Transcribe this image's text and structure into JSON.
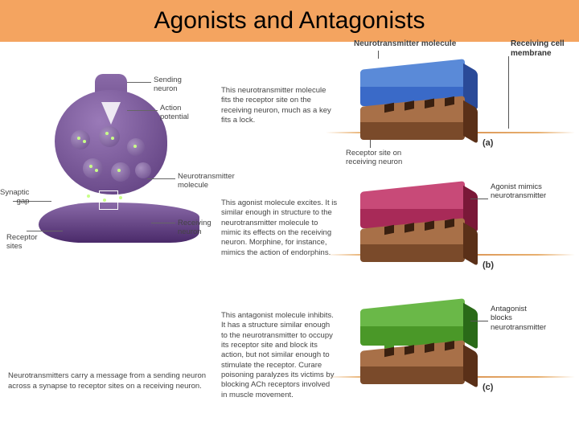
{
  "title": {
    "text": "Agonists and Antagonists",
    "fontsize": 30,
    "background": "#f4a460"
  },
  "synapse": {
    "labels": {
      "sending": "Sending\nneuron",
      "action": "Action\npotential",
      "gap": "Synaptic\ngap",
      "receptor": "Receptor\nsites",
      "nt": "Neurotransmitter\nmolecule",
      "receiving": "Receiving neuron"
    },
    "caption": "Neurotransmitters carry a message from a sending neuron across a synapse to receptor sites on a receiving neuron."
  },
  "top_labels": {
    "nt_molecule": "Neurotransmitter molecule",
    "membrane": "Receiving cell\nmembrane",
    "receptor_site": "Receptor site on\nreceiving neuron"
  },
  "panels": {
    "a": {
      "letter": "(a)",
      "desc": "This neurotransmitter molecule fits the receptor site on the receiving neuron, much as a key fits a lock.",
      "right_label": "",
      "mol_color_top": "#5a8ad8",
      "mol_color_front": "#3a6ac8",
      "mol_color_side": "#2a4a98",
      "base_top": "#a87048",
      "base_front": "#7a4a2a",
      "base_side": "#5a3018",
      "keys": [
        30,
        55,
        80,
        105
      ]
    },
    "b": {
      "letter": "(b)",
      "desc": "This agonist molecule excites. It is similar enough in structure to the neurotransmitter molecule to mimic its effects on the receiving neuron. Morphine, for instance, mimics the action of endorphins.",
      "right_label": "Agonist mimics\nneurotransmitter",
      "mol_color_top": "#c84a78",
      "mol_color_front": "#a82a58",
      "mol_color_side": "#7a1838",
      "base_top": "#a87048",
      "base_front": "#7a4a2a",
      "base_side": "#5a3018",
      "keys": [
        30,
        55,
        80,
        105
      ]
    },
    "c": {
      "letter": "(c)",
      "desc": "This antagonist molecule inhibits. It has a structure similar enough to the neurotransmitter to occupy its receptor site and block its action, but not similar enough to stimulate the receptor. Curare poisoning paralyzes its victims by blocking ACh receptors involved in muscle movement.",
      "right_label": "Antagonist\nblocks\nneurotransmitter",
      "mol_color_top": "#6ab848",
      "mol_color_front": "#4a9828",
      "mol_color_side": "#2a6a18",
      "base_top": "#a87048",
      "base_front": "#7a4a2a",
      "base_side": "#5a3018",
      "keys": [
        30,
        60,
        100
      ]
    }
  }
}
